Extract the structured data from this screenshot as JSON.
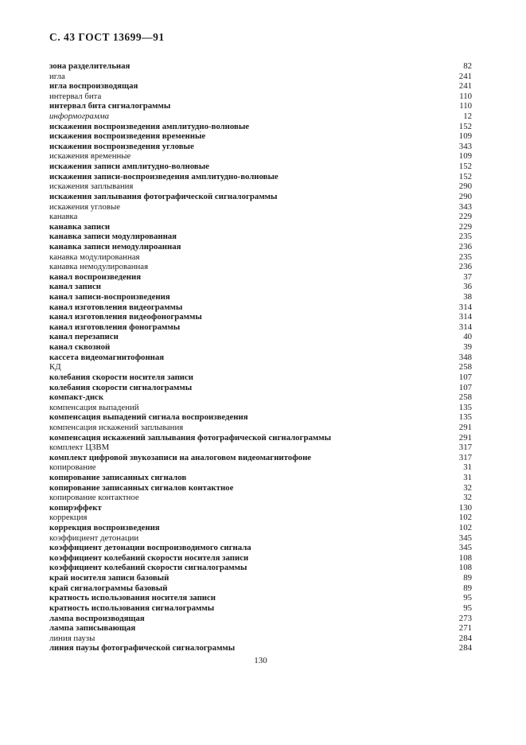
{
  "page": {
    "header": "С. 43 ГОСТ 13699—91",
    "page_number": "130"
  },
  "index": {
    "entries": [
      {
        "term": "зона разделительная",
        "page": "82",
        "style": "bold"
      },
      {
        "term": "игла",
        "page": "241",
        "style": "regular"
      },
      {
        "term": "игла воспроизводящая",
        "page": "241",
        "style": "bold"
      },
      {
        "term": "интервал бита",
        "page": "110",
        "style": "regular"
      },
      {
        "term": "интервал бита сигналограммы",
        "page": "110",
        "style": "bold"
      },
      {
        "term": "информограмма",
        "page": "12",
        "style": "italic"
      },
      {
        "term": "искажения воспроизведения амплитудно-волновые",
        "page": "152",
        "style": "bold"
      },
      {
        "term": "искажения воспроизведения временны́е",
        "page": "109",
        "style": "bold"
      },
      {
        "term": "искажения воспроизведения угловые",
        "page": "343",
        "style": "bold"
      },
      {
        "term": "искажения време́нны́е",
        "page": "109",
        "style": "regular"
      },
      {
        "term": "искажения записи амплитудно-волновые",
        "page": "152",
        "style": "bold"
      },
      {
        "term": "искажения записи-воспроизведения амплитудно-волновые",
        "page": "152",
        "style": "bold"
      },
      {
        "term": "искажения заплывания",
        "page": "290",
        "style": "regular"
      },
      {
        "term": "искажения заплывания фотографической сигналограммы",
        "page": "290",
        "style": "bold"
      },
      {
        "term": "искажения угловые",
        "page": "343",
        "style": "regular"
      },
      {
        "term": "канавка",
        "page": "229",
        "style": "regular"
      },
      {
        "term": "канавка записи",
        "page": "229",
        "style": "bold"
      },
      {
        "term": "канавка записи модулированная",
        "page": "235",
        "style": "bold"
      },
      {
        "term": "канавка записи немодулироанная",
        "page": "236",
        "style": "bold"
      },
      {
        "term": "канавка модулированная",
        "page": "235",
        "style": "regular"
      },
      {
        "term": "канавка немодулированная",
        "page": "236",
        "style": "regular"
      },
      {
        "term": "канал воспроизведения",
        "page": "37",
        "style": "bold"
      },
      {
        "term": "канал записи",
        "page": "36",
        "style": "bold"
      },
      {
        "term": "канал записи-воспроизведения",
        "page": "38",
        "style": "bold"
      },
      {
        "term": "канал изготовления видеограммы",
        "page": "314",
        "style": "bold"
      },
      {
        "term": "канал изготовления видеофонограммы",
        "page": "314",
        "style": "bold"
      },
      {
        "term": "канал изготовления фонограммы",
        "page": "314",
        "style": "bold"
      },
      {
        "term": "канал перезаписи",
        "page": "40",
        "style": "bold"
      },
      {
        "term": "канал сквозной",
        "page": "39",
        "style": "bold"
      },
      {
        "term": "кассета видеомагнитофонная",
        "page": "348",
        "style": "bold"
      },
      {
        "term": "КД",
        "page": "258",
        "style": "regular"
      },
      {
        "term": "колебания скорости носителя записи",
        "page": "107",
        "style": "bold"
      },
      {
        "term": "колебания скорости сигналограммы",
        "page": "107",
        "style": "bold"
      },
      {
        "term": "компакт-диск",
        "page": "258",
        "style": "bold"
      },
      {
        "term": "компенсация выпадений",
        "page": "135",
        "style": "regular"
      },
      {
        "term": "компенсация выпадений сигнала воспроизведения",
        "page": "135",
        "style": "bold"
      },
      {
        "term": "компенсация искажений заплывания",
        "page": "291",
        "style": "regular"
      },
      {
        "term": "компенсация искажений заплывания фотографической сигналограммы",
        "page": "291",
        "style": "bold"
      },
      {
        "term": "комплект ЦЗВМ",
        "page": "317",
        "style": "regular"
      },
      {
        "term": "комплект цифровой звукозаписи на аналоговом видеомагнитофоне",
        "page": "317",
        "style": "bold"
      },
      {
        "term": "копирование",
        "page": "31",
        "style": "regular"
      },
      {
        "term": "копирование записанных сигналов",
        "page": "31",
        "style": "bold"
      },
      {
        "term": "копирование записанных сигналов контактное",
        "page": "32",
        "style": "bold"
      },
      {
        "term": "копирование контактное",
        "page": "32",
        "style": "regular"
      },
      {
        "term": "копирэффект",
        "page": "130",
        "style": "bold"
      },
      {
        "term": "коррекция",
        "page": "102",
        "style": "regular"
      },
      {
        "term": "коррекция воспроизведения",
        "page": "102",
        "style": "bold"
      },
      {
        "term": "коэффициент детонации",
        "page": "345",
        "style": "regular"
      },
      {
        "term": "коэффициент детонации воспроизводимого сигнала",
        "page": "345",
        "style": "bold"
      },
      {
        "term": "коэффициент колебаний скорости носителя записи",
        "page": "108",
        "style": "bold"
      },
      {
        "term": "коэффициент колебаний скорости сигналограммы",
        "page": "108",
        "style": "bold"
      },
      {
        "term": "край носителя записи базовый",
        "page": "89",
        "style": "bold"
      },
      {
        "term": "край сигналограммы базовый",
        "page": "89",
        "style": "bold"
      },
      {
        "term": "кратность использования носителя записи",
        "page": "95",
        "style": "bold"
      },
      {
        "term": "кратность использования сигналограммы",
        "page": "95",
        "style": "bold"
      },
      {
        "term": "лампа воспроизводящая",
        "page": "273",
        "style": "bold"
      },
      {
        "term": "лампа записывающая",
        "page": "271",
        "style": "bold"
      },
      {
        "term": "линия паузы",
        "page": "284",
        "style": "regular"
      },
      {
        "term": "линия паузы фотографической сигналограммы",
        "page": "284",
        "style": "bold"
      }
    ]
  }
}
